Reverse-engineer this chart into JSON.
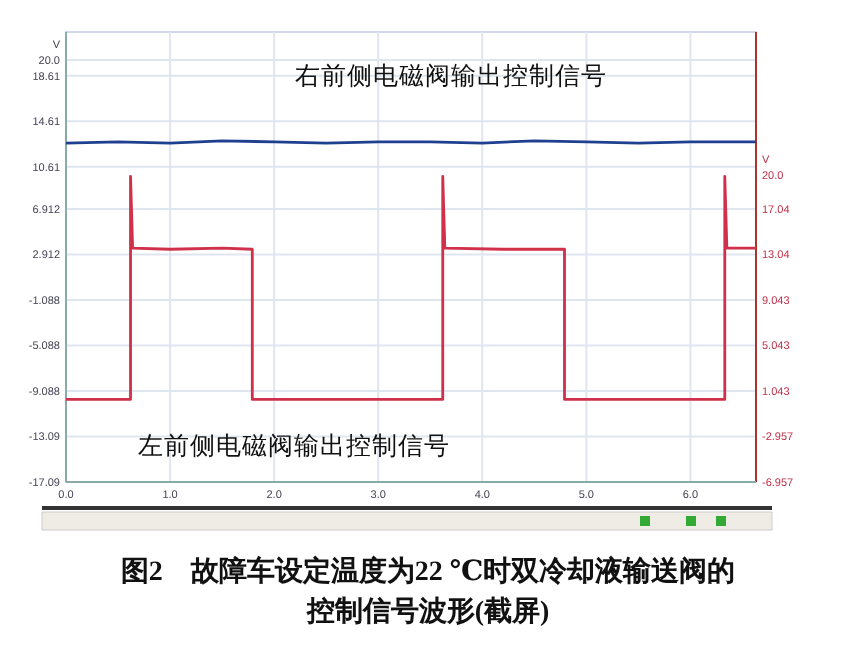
{
  "chart_data": {
    "type": "line",
    "title": "图2　故障车设定温度为22 ℃时双冷却液输送阀的控制信号波形(截屏)",
    "ylabel": "V",
    "y2label": "V",
    "xlim": [
      0,
      6.63
    ],
    "xticks": [
      {
        "value": 0,
        "label": "0.0"
      },
      {
        "value": 1,
        "label": "1.0"
      },
      {
        "value": 2,
        "label": "2.0"
      },
      {
        "value": 3,
        "label": "3.0"
      },
      {
        "value": 4,
        "label": "4.0"
      },
      {
        "value": 5,
        "label": "5.0"
      },
      {
        "value": 6,
        "label": "6.0"
      }
    ],
    "ylim": [
      -17.09,
      20.0
    ],
    "yticks": [
      {
        "value": 20,
        "label": "20.0"
      },
      18.61,
      14.61,
      10.61,
      6.912,
      2.912,
      -1.088,
      -5.088,
      -9.088,
      -13.09,
      -17.09
    ],
    "y2lim": [
      -6.957,
      30.13
    ],
    "y2ticks": [
      {
        "value": 20,
        "label": "20.0"
      },
      17.04,
      13.04,
      9.043,
      5.043,
      1.043,
      -2.957,
      -6.957
    ],
    "grid": true,
    "line_style": "solid",
    "series": [
      {
        "name": "右前侧电磁阀输出控制信号",
        "color": "#1f3f8f",
        "x": [
          0,
          0.5,
          1,
          1.5,
          2,
          2.5,
          3,
          3.5,
          4,
          4.5,
          5,
          5.5,
          6,
          6.63
        ],
        "values": [
          12.7,
          12.8,
          12.7,
          12.9,
          12.8,
          12.7,
          12.8,
          12.8,
          12.7,
          12.9,
          12.8,
          12.7,
          12.8,
          12.8
        ]
      },
      {
        "name": "左前侧电磁阀输出控制信号",
        "color": "#d0304a",
        "axis": "y2",
        "x": [
          0,
          0.62,
          0.62,
          0.64,
          1.0,
          1.5,
          1.79,
          1.79,
          2.5,
          3.0,
          3.62,
          3.62,
          3.64,
          4.2,
          4.79,
          4.79,
          5.5,
          6.33,
          6.33,
          6.35,
          6.63
        ],
        "values": [
          0.3,
          0.3,
          19.9,
          13.6,
          13.5,
          13.6,
          13.5,
          0.3,
          0.3,
          0.3,
          0.3,
          19.9,
          13.6,
          13.5,
          13.5,
          0.3,
          0.3,
          0.3,
          19.9,
          13.6,
          13.6
        ]
      }
    ]
  }
}
